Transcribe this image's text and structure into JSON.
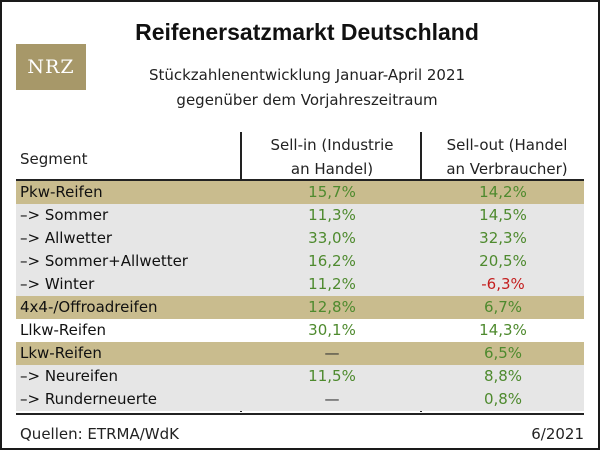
{
  "logo": {
    "text": "NRZ"
  },
  "title": "Reifenersatzmarkt Deutschland",
  "subtitle_lines": [
    "Stückzahlenentwicklung Januar-April 2021",
    "gegenüber dem Vorjahreszeitraum"
  ],
  "table": {
    "headers": {
      "segment": "Segment",
      "sell_in": [
        "Sell-in (Industrie",
        "an Handel)"
      ],
      "sell_out": [
        "Sell-out (Handel",
        "an Verbraucher)"
      ]
    },
    "rows": [
      {
        "segment": "Pkw-Reifen",
        "sell_in": "15,7%",
        "sell_out": "14,2%"
      },
      {
        "segment": "–> Sommer",
        "sell_in": "11,3%",
        "sell_out": "14,5%"
      },
      {
        "segment": "–> Allwetter",
        "sell_in": "33,0%",
        "sell_out": "32,3%"
      },
      {
        "segment": "–> Sommer+Allwetter",
        "sell_in": "16,2%",
        "sell_out": "20,5%"
      },
      {
        "segment": "–> Winter",
        "sell_in": "11,2%",
        "sell_out": "-6,3%"
      },
      {
        "segment": "4x4-/Offroadreifen",
        "sell_in": "12,8%",
        "sell_out": "6,7%"
      },
      {
        "segment": "Llkw-Reifen",
        "sell_in": "30,1%",
        "sell_out": "14,3%"
      },
      {
        "segment": "Lkw-Reifen",
        "sell_in": "—",
        "sell_out": "6,5%"
      },
      {
        "segment": "–> Neureifen",
        "sell_in": "11,5%",
        "sell_out": "8,8%"
      },
      {
        "segment": "–> Runderneuerte",
        "sell_in": "—",
        "sell_out": "0,8%"
      }
    ]
  },
  "colors": {
    "category_row": "#c9bc8e",
    "sub_row": "#e6e6e6",
    "positive": "#4e8a2e",
    "negative": "#c41f1f",
    "logo_bg": "#a79869"
  },
  "footer": {
    "source": "Quellen: ETRMA/WdK",
    "date": "6/2021"
  }
}
